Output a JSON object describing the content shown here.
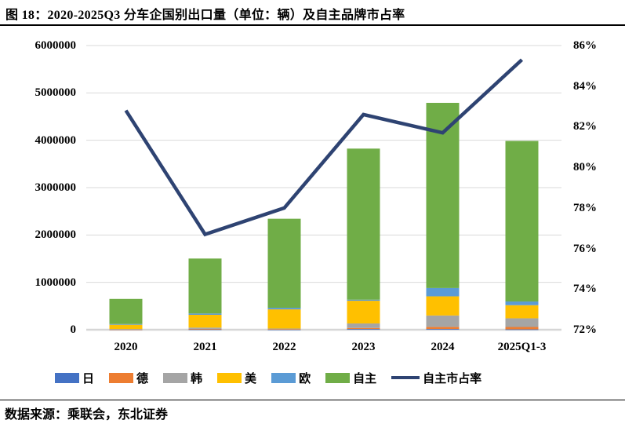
{
  "header": {
    "title": "图 18：2020-2025Q3 分车企国别出口量（单位：辆）及自主品牌市占率"
  },
  "footer": {
    "source": "数据来源：乘联会，东北证券"
  },
  "chart_data": {
    "type": "bar",
    "subtype": "stacked-column-with-line",
    "title": "2020-2025Q3 分车企国别出口量（单位：辆）及自主品牌市占率",
    "categories": [
      "2020",
      "2021",
      "2022",
      "2023",
      "2024",
      "2025Q1-3"
    ],
    "series": [
      {
        "name": "日",
        "color": "#4472C4",
        "values": [
          5000,
          8000,
          5000,
          15000,
          15000,
          8000
        ]
      },
      {
        "name": "德",
        "color": "#ED7D31",
        "values": [
          3000,
          10000,
          8000,
          22000,
          45000,
          50000
        ]
      },
      {
        "name": "韩",
        "color": "#A5A5A5",
        "values": [
          7000,
          27000,
          12000,
          95000,
          240000,
          183000
        ]
      },
      {
        "name": "美",
        "color": "#FFC000",
        "values": [
          90000,
          270000,
          405000,
          480000,
          405000,
          277000
        ]
      },
      {
        "name": "欧",
        "color": "#5B9BD5",
        "values": [
          15000,
          28000,
          33000,
          22000,
          175000,
          78000
        ]
      },
      {
        "name": "自主",
        "color": "#70AD47",
        "values": [
          530000,
          1160000,
          1880000,
          3190000,
          3910000,
          3390000
        ]
      }
    ],
    "line_series": {
      "name": "自主市占率",
      "color": "#2E4372",
      "axis": "right",
      "values": [
        82.8,
        76.7,
        78.0,
        82.6,
        81.7,
        85.3
      ]
    },
    "left_axis": {
      "min": 0,
      "max": 6000000,
      "step": 1000000,
      "tick_labels": [
        "0",
        "1000000",
        "2000000",
        "3000000",
        "4000000",
        "5000000",
        "6000000"
      ]
    },
    "right_axis": {
      "min": 72,
      "max": 86,
      "step": 2,
      "tick_labels": [
        "72%",
        "74%",
        "76%",
        "78%",
        "80%",
        "82%",
        "84%",
        "86%"
      ]
    },
    "grid": true,
    "grid_color": "#D9D9D9",
    "axis_line_color": "#D6D6D6",
    "legend_position": "bottom"
  }
}
